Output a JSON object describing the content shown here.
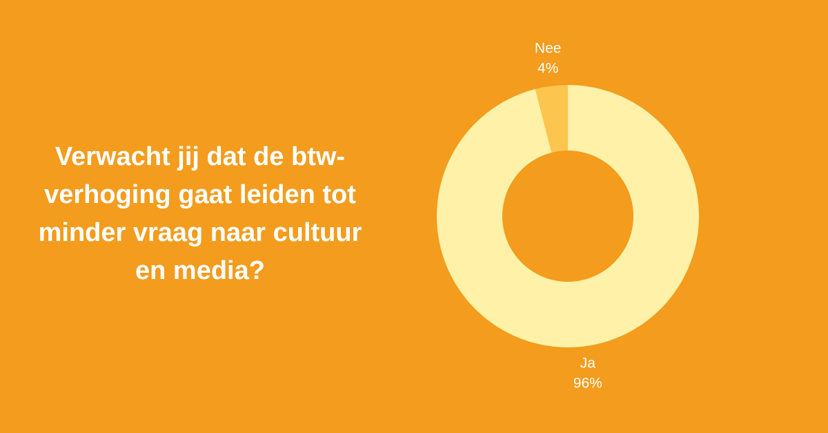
{
  "chart_data": {
    "type": "donut",
    "title": "Verwacht jij dat de btw-verhoging gaat leiden tot minder vraag naar cultuur en media?",
    "categories": [
      "Ja",
      "Nee"
    ],
    "values": [
      96,
      4
    ],
    "value_labels": [
      "96%",
      "4%"
    ],
    "colors": [
      "#fff2a8",
      "#fcc54e"
    ]
  }
}
